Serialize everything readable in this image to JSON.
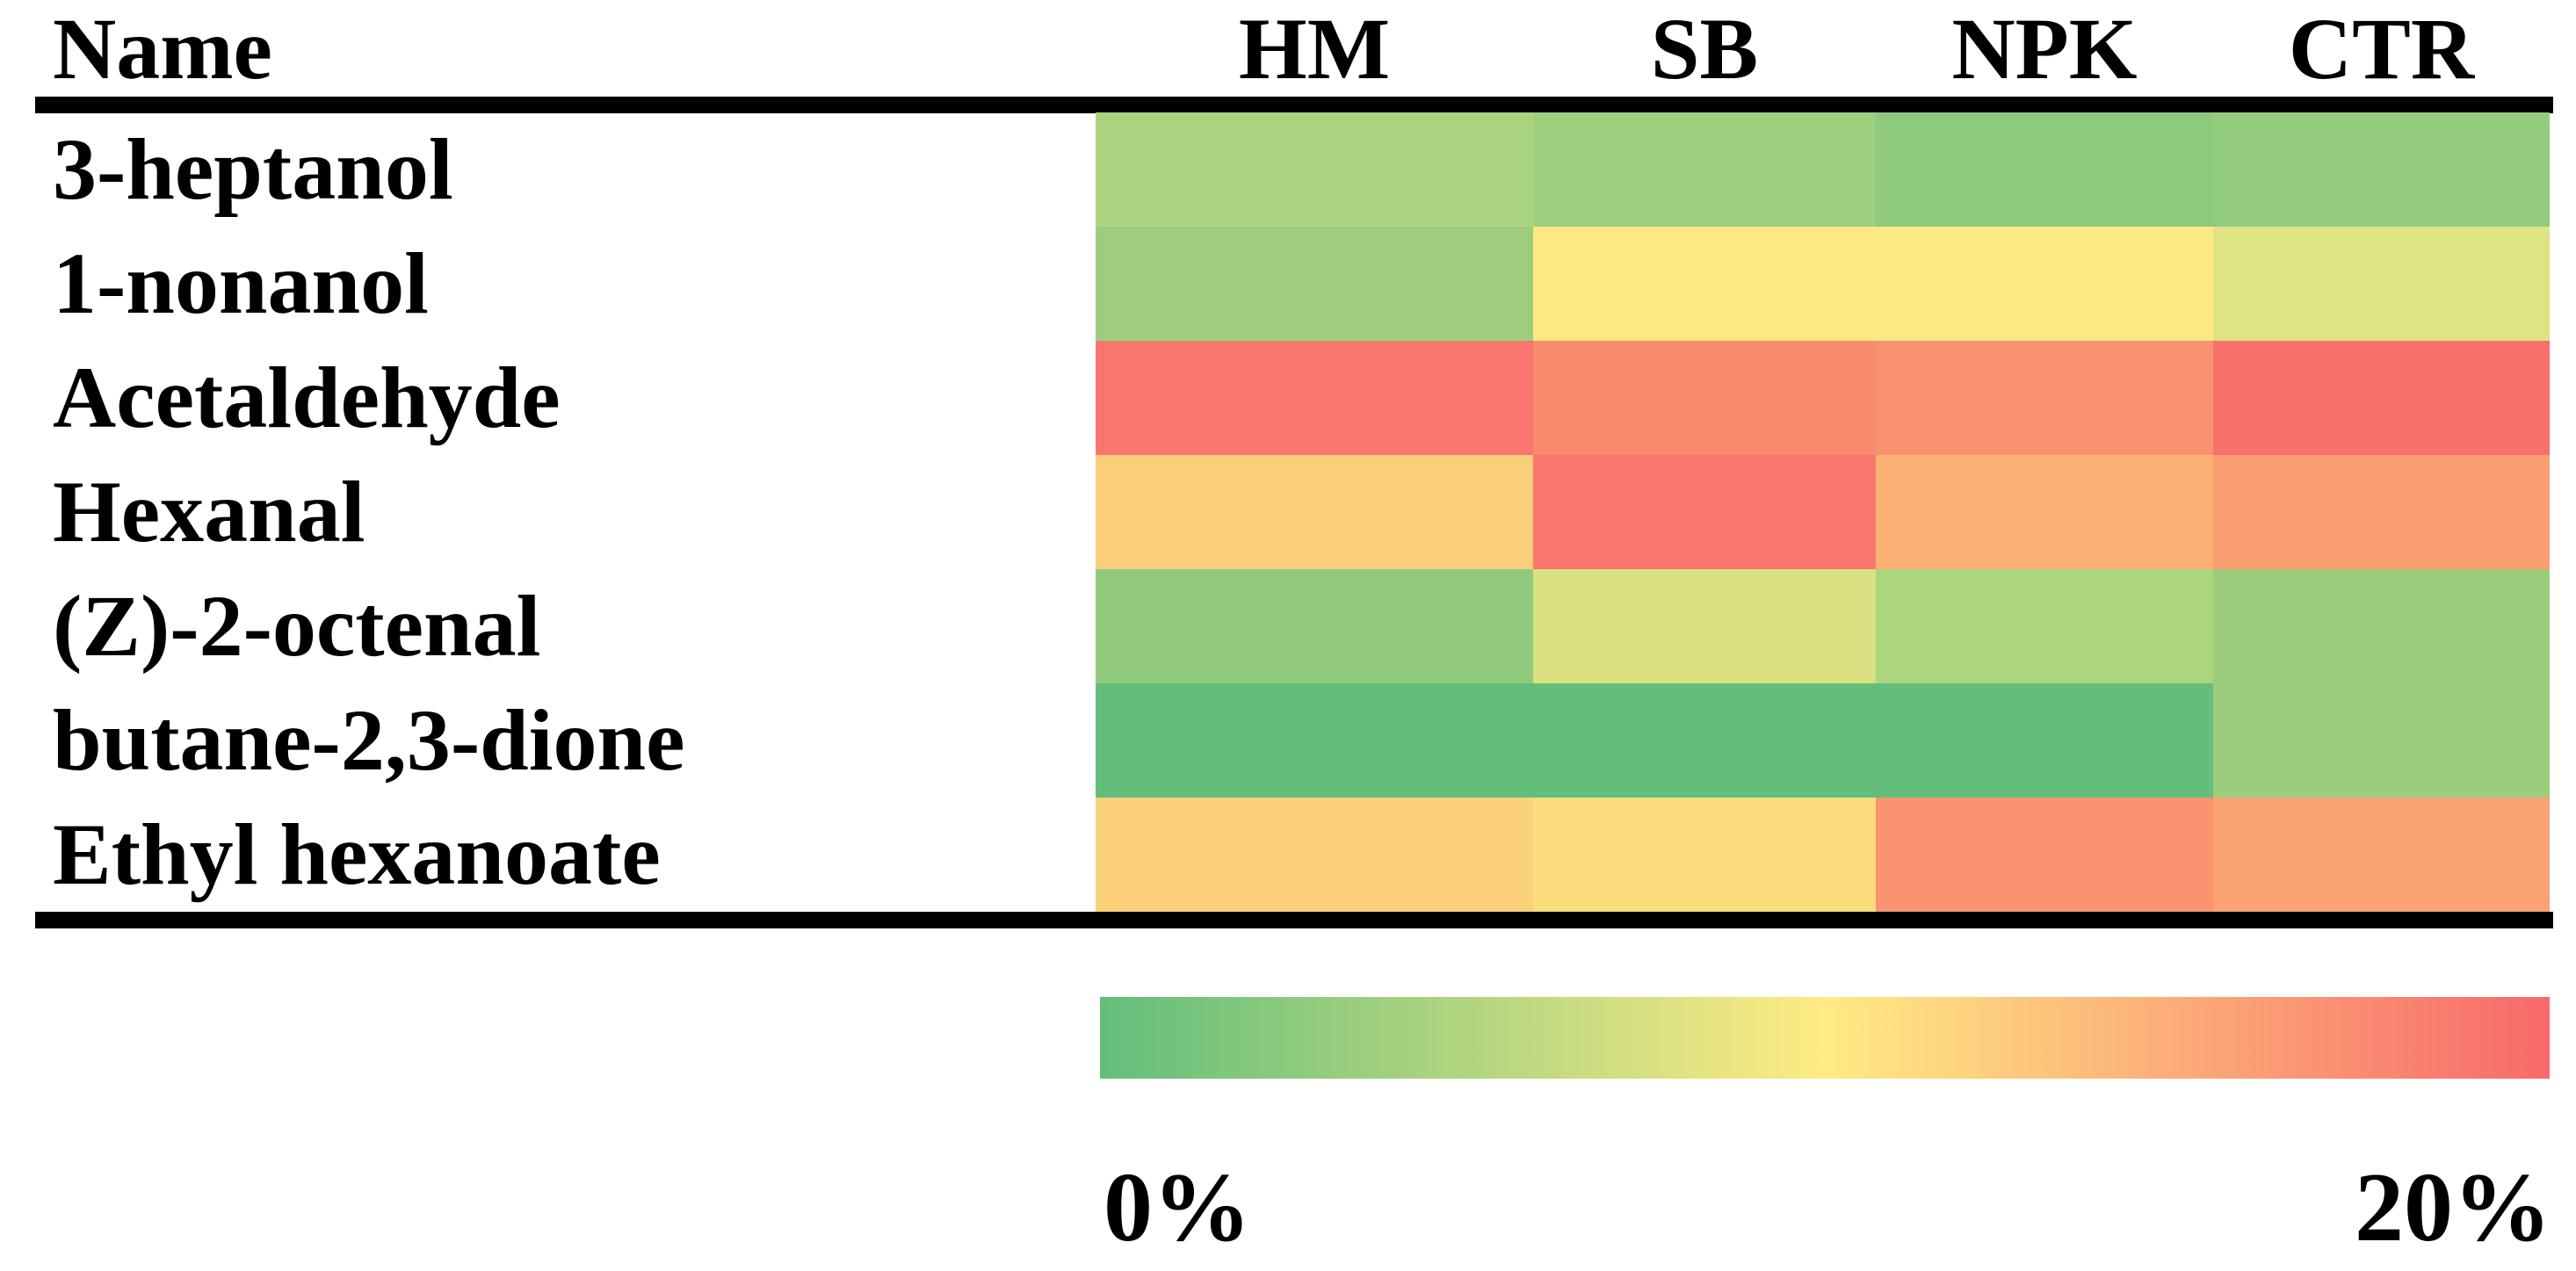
{
  "table": {
    "name_header": "Name"
  },
  "legend": {
    "min_label": "0%",
    "max_label": "20%"
  },
  "chart_data": {
    "type": "heatmap",
    "columns": [
      "HM",
      "SB",
      "NPK",
      "CTR"
    ],
    "rows": [
      "3-heptanol",
      "1-nonanol",
      "Acetaldehyde",
      "Hexanal",
      "(Z)-2-octenal",
      "butane-2,3-dione",
      "Ethyl hexanoate"
    ],
    "cell_colors": [
      [
        "#ABD37F",
        "#9CCF7E",
        "#8DCA7E",
        "#93CC7E"
      ],
      [
        "#9ECD7E",
        "#FDE984",
        "#FDE984",
        "#DFE382"
      ],
      [
        "#F8766E",
        "#F98C6E",
        "#F9916F",
        "#F8706C"
      ],
      [
        "#FBCE7A",
        "#F9766E",
        "#FBB073",
        "#FA9D71"
      ],
      [
        "#90CA7D",
        "#D9E182",
        "#ABD67E",
        "#9BCD7D"
      ],
      [
        "#63BE7B",
        "#63BE7B",
        "#63BE7B",
        "#9CCD7D"
      ],
      [
        "#FCD17B",
        "#FCDD7E",
        "#FA9470",
        "#FBA273"
      ]
    ],
    "values_percent": [
      [
        4.6,
        3.7,
        2.7,
        3.1
      ],
      [
        3.8,
        9.9,
        9.9,
        7.9
      ],
      [
        18.9,
        17.3,
        16.9,
        19.5
      ],
      [
        12.2,
        19.0,
        14.5,
        16.0
      ],
      [
        2.9,
        7.6,
        4.6,
        3.6
      ],
      [
        0.0,
        0.0,
        0.0,
        3.7
      ],
      [
        12.0,
        11.1,
        16.7,
        15.6
      ]
    ],
    "value_estimation": "interpolated from 3-color scale",
    "scale": {
      "min_label": "0%",
      "max_label": "20%",
      "min_color": "#63BE7B",
      "mid_color": "#FFEB84",
      "max_color": "#F8696B"
    },
    "legend_position": "bottom"
  }
}
